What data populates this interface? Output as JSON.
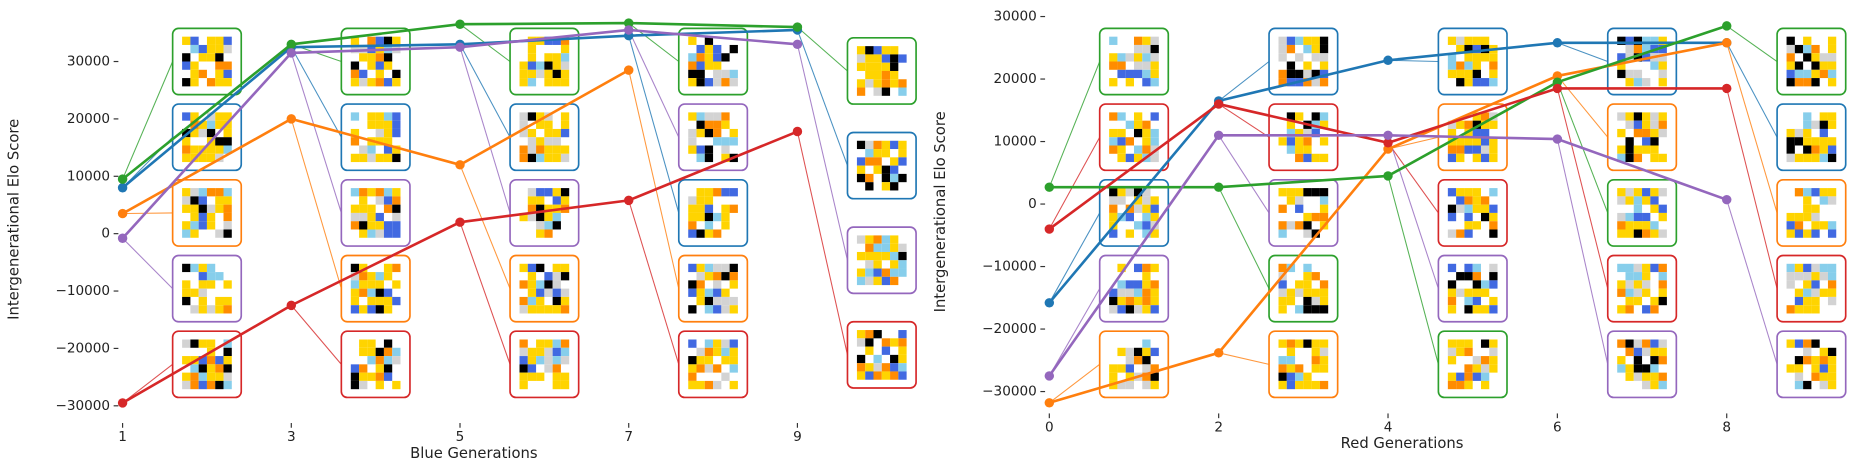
{
  "chart_data": [
    {
      "type": "line",
      "xlabel": "Blue Generations",
      "ylabel": "Intergenerational Elo Score",
      "x": [
        1,
        3,
        5,
        7,
        9
      ],
      "xlim": [
        0.95,
        10.5
      ],
      "xticks": [
        1,
        3,
        5,
        7,
        9
      ],
      "ylim": [
        -33000,
        38000
      ],
      "yticks": [
        {
          "value": -30000,
          "label": "−30000"
        },
        {
          "value": -20000,
          "label": "−20000"
        },
        {
          "value": -10000,
          "label": "−10000"
        },
        0,
        10000,
        20000,
        30000
      ],
      "series": [
        {
          "color": "#1f77b4",
          "values": [
            8000,
            32500,
            33000,
            34500,
            35500
          ]
        },
        {
          "color": "#ff7f0e",
          "values": [
            3500,
            20000,
            12000,
            28500,
            null
          ]
        },
        {
          "color": "#2ca02c",
          "values": [
            9500,
            33000,
            36500,
            36700,
            36000
          ]
        },
        {
          "color": "#d62728",
          "values": [
            -29500,
            -12500,
            2000,
            5800,
            17800
          ]
        },
        {
          "color": "#9467bd",
          "values": [
            -800,
            31500,
            32500,
            35500,
            33000
          ]
        }
      ]
    },
    {
      "type": "line",
      "xlabel": "Red Generations",
      "ylabel": "Intergenerational Elo Score",
      "x": [
        0,
        2,
        4,
        6,
        8
      ],
      "xlim": [
        -0.05,
        9.5
      ],
      "xticks": [
        0,
        2,
        4,
        6,
        8
      ],
      "ylim": [
        -33500,
        31000
      ],
      "yticks": [
        {
          "value": -30000,
          "label": "−30000"
        },
        {
          "value": -20000,
          "label": "−20000"
        },
        {
          "value": -10000,
          "label": "−10000"
        },
        0,
        10000,
        20000,
        30000
      ],
      "series": [
        {
          "color": "#1f77b4",
          "values": [
            -15800,
            16500,
            23000,
            25800,
            25800
          ]
        },
        {
          "color": "#ff7f0e",
          "values": [
            -31800,
            -23800,
            8800,
            20500,
            25800
          ]
        },
        {
          "color": "#2ca02c",
          "values": [
            2700,
            2700,
            4500,
            19500,
            28500
          ]
        },
        {
          "color": "#d62728",
          "values": [
            -4000,
            16000,
            9800,
            18500,
            18500
          ]
        },
        {
          "color": "#9467bd",
          "values": [
            -27500,
            11000,
            11000,
            10400,
            700
          ]
        }
      ]
    }
  ]
}
